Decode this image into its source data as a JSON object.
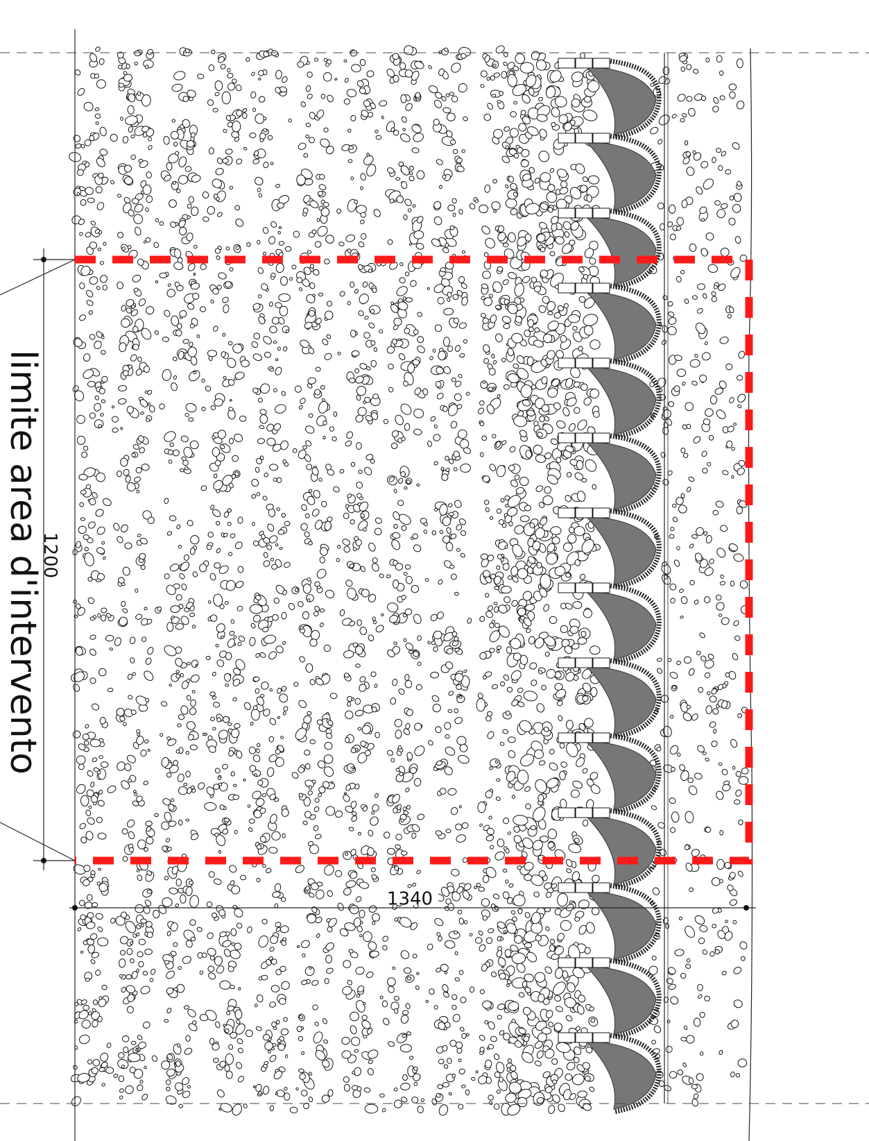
{
  "annotations": {
    "area_label": "limite area d'intervento",
    "height_dimension": 1200,
    "width_dimension": 1340
  }
}
